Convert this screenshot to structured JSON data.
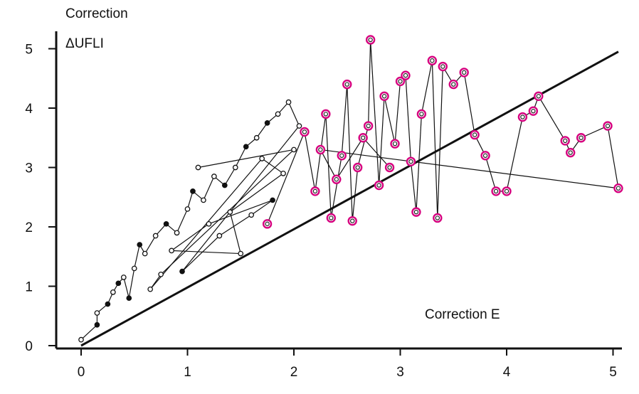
{
  "chart_data": {
    "type": "scatter",
    "title": "",
    "ylabel_line1": "Correction",
    "ylabel_line2": "ΔUFLI",
    "xlabel": "Correction E",
    "xlim": [
      0,
      5
    ],
    "ylim": [
      0,
      5
    ],
    "x_ticks": [
      0,
      1,
      2,
      3,
      4,
      5
    ],
    "y_ticks": [
      0,
      1,
      2,
      3,
      4,
      5
    ],
    "grid": false,
    "legend": "none",
    "colors": {
      "black": "#111111",
      "magenta": "#d6007f",
      "white": "#ffffff"
    },
    "identity_line": {
      "from": [
        0,
        0
      ],
      "to": [
        5.05,
        4.95
      ]
    },
    "cluster_points": [
      {
        "x": 0.0,
        "y": 0.1
      },
      {
        "x": 0.15,
        "y": 0.35,
        "filled": true
      },
      {
        "x": 0.15,
        "y": 0.55
      },
      {
        "x": 0.25,
        "y": 0.7,
        "filled": true
      },
      {
        "x": 0.3,
        "y": 0.9
      },
      {
        "x": 0.35,
        "y": 1.05,
        "filled": true
      },
      {
        "x": 0.4,
        "y": 1.15
      },
      {
        "x": 0.45,
        "y": 0.8,
        "filled": true
      },
      {
        "x": 0.5,
        "y": 1.3
      },
      {
        "x": 0.55,
        "y": 1.7,
        "filled": true
      },
      {
        "x": 0.6,
        "y": 1.55
      },
      {
        "x": 0.7,
        "y": 1.85
      },
      {
        "x": 0.8,
        "y": 2.05,
        "filled": true
      },
      {
        "x": 0.9,
        "y": 1.9
      },
      {
        "x": 1.0,
        "y": 2.3
      },
      {
        "x": 1.05,
        "y": 2.6,
        "filled": true
      },
      {
        "x": 1.15,
        "y": 2.45
      },
      {
        "x": 1.25,
        "y": 2.85
      },
      {
        "x": 1.35,
        "y": 2.7,
        "filled": true
      },
      {
        "x": 1.45,
        "y": 3.0
      },
      {
        "x": 1.55,
        "y": 3.35,
        "filled": true
      },
      {
        "x": 1.65,
        "y": 3.5
      },
      {
        "x": 1.75,
        "y": 3.75,
        "filled": true
      },
      {
        "x": 1.85,
        "y": 3.9
      },
      {
        "x": 1.95,
        "y": 4.1
      },
      {
        "x": 2.05,
        "y": 3.7
      },
      {
        "x": 0.95,
        "y": 1.25,
        "filled": true
      },
      {
        "x": 1.3,
        "y": 1.85
      },
      {
        "x": 1.6,
        "y": 2.2
      },
      {
        "x": 1.8,
        "y": 2.45,
        "filled": true
      },
      {
        "x": 1.2,
        "y": 2.05
      },
      {
        "x": 0.85,
        "y": 1.6
      },
      {
        "x": 1.5,
        "y": 1.55
      },
      {
        "x": 1.4,
        "y": 2.25
      },
      {
        "x": 1.9,
        "y": 2.9
      },
      {
        "x": 1.7,
        "y": 3.15
      },
      {
        "x": 0.65,
        "y": 0.95
      },
      {
        "x": 0.75,
        "y": 1.2
      },
      {
        "x": 2.0,
        "y": 3.3
      },
      {
        "x": 1.1,
        "y": 3.0
      }
    ],
    "highlight_points": [
      {
        "x": 1.75,
        "y": 2.05
      },
      {
        "x": 2.1,
        "y": 3.6
      },
      {
        "x": 2.2,
        "y": 2.6
      },
      {
        "x": 2.3,
        "y": 3.9
      },
      {
        "x": 2.35,
        "y": 2.15
      },
      {
        "x": 2.45,
        "y": 3.2
      },
      {
        "x": 2.5,
        "y": 4.4
      },
      {
        "x": 2.55,
        "y": 2.1
      },
      {
        "x": 2.6,
        "y": 3.0
      },
      {
        "x": 2.7,
        "y": 3.7
      },
      {
        "x": 2.72,
        "y": 5.15
      },
      {
        "x": 2.8,
        "y": 2.7
      },
      {
        "x": 2.85,
        "y": 4.2
      },
      {
        "x": 2.95,
        "y": 3.4
      },
      {
        "x": 3.0,
        "y": 4.45
      },
      {
        "x": 3.05,
        "y": 4.55
      },
      {
        "x": 3.1,
        "y": 3.1
      },
      {
        "x": 3.15,
        "y": 2.25
      },
      {
        "x": 3.2,
        "y": 3.9
      },
      {
        "x": 3.3,
        "y": 4.8
      },
      {
        "x": 3.35,
        "y": 2.15
      },
      {
        "x": 3.4,
        "y": 4.7
      },
      {
        "x": 3.5,
        "y": 4.4
      },
      {
        "x": 3.6,
        "y": 4.6
      },
      {
        "x": 3.7,
        "y": 3.55
      },
      {
        "x": 3.8,
        "y": 3.2
      },
      {
        "x": 3.9,
        "y": 2.6
      },
      {
        "x": 4.0,
        "y": 2.6
      },
      {
        "x": 4.15,
        "y": 3.85
      },
      {
        "x": 4.25,
        "y": 3.95
      },
      {
        "x": 4.3,
        "y": 4.2
      },
      {
        "x": 4.55,
        "y": 3.45
      },
      {
        "x": 4.6,
        "y": 3.25
      },
      {
        "x": 4.7,
        "y": 3.5
      },
      {
        "x": 4.95,
        "y": 3.7
      },
      {
        "x": 5.05,
        "y": 2.65
      },
      {
        "x": 2.25,
        "y": 3.3
      },
      {
        "x": 2.4,
        "y": 2.8
      },
      {
        "x": 2.65,
        "y": 3.5
      },
      {
        "x": 2.9,
        "y": 3.0
      }
    ]
  }
}
